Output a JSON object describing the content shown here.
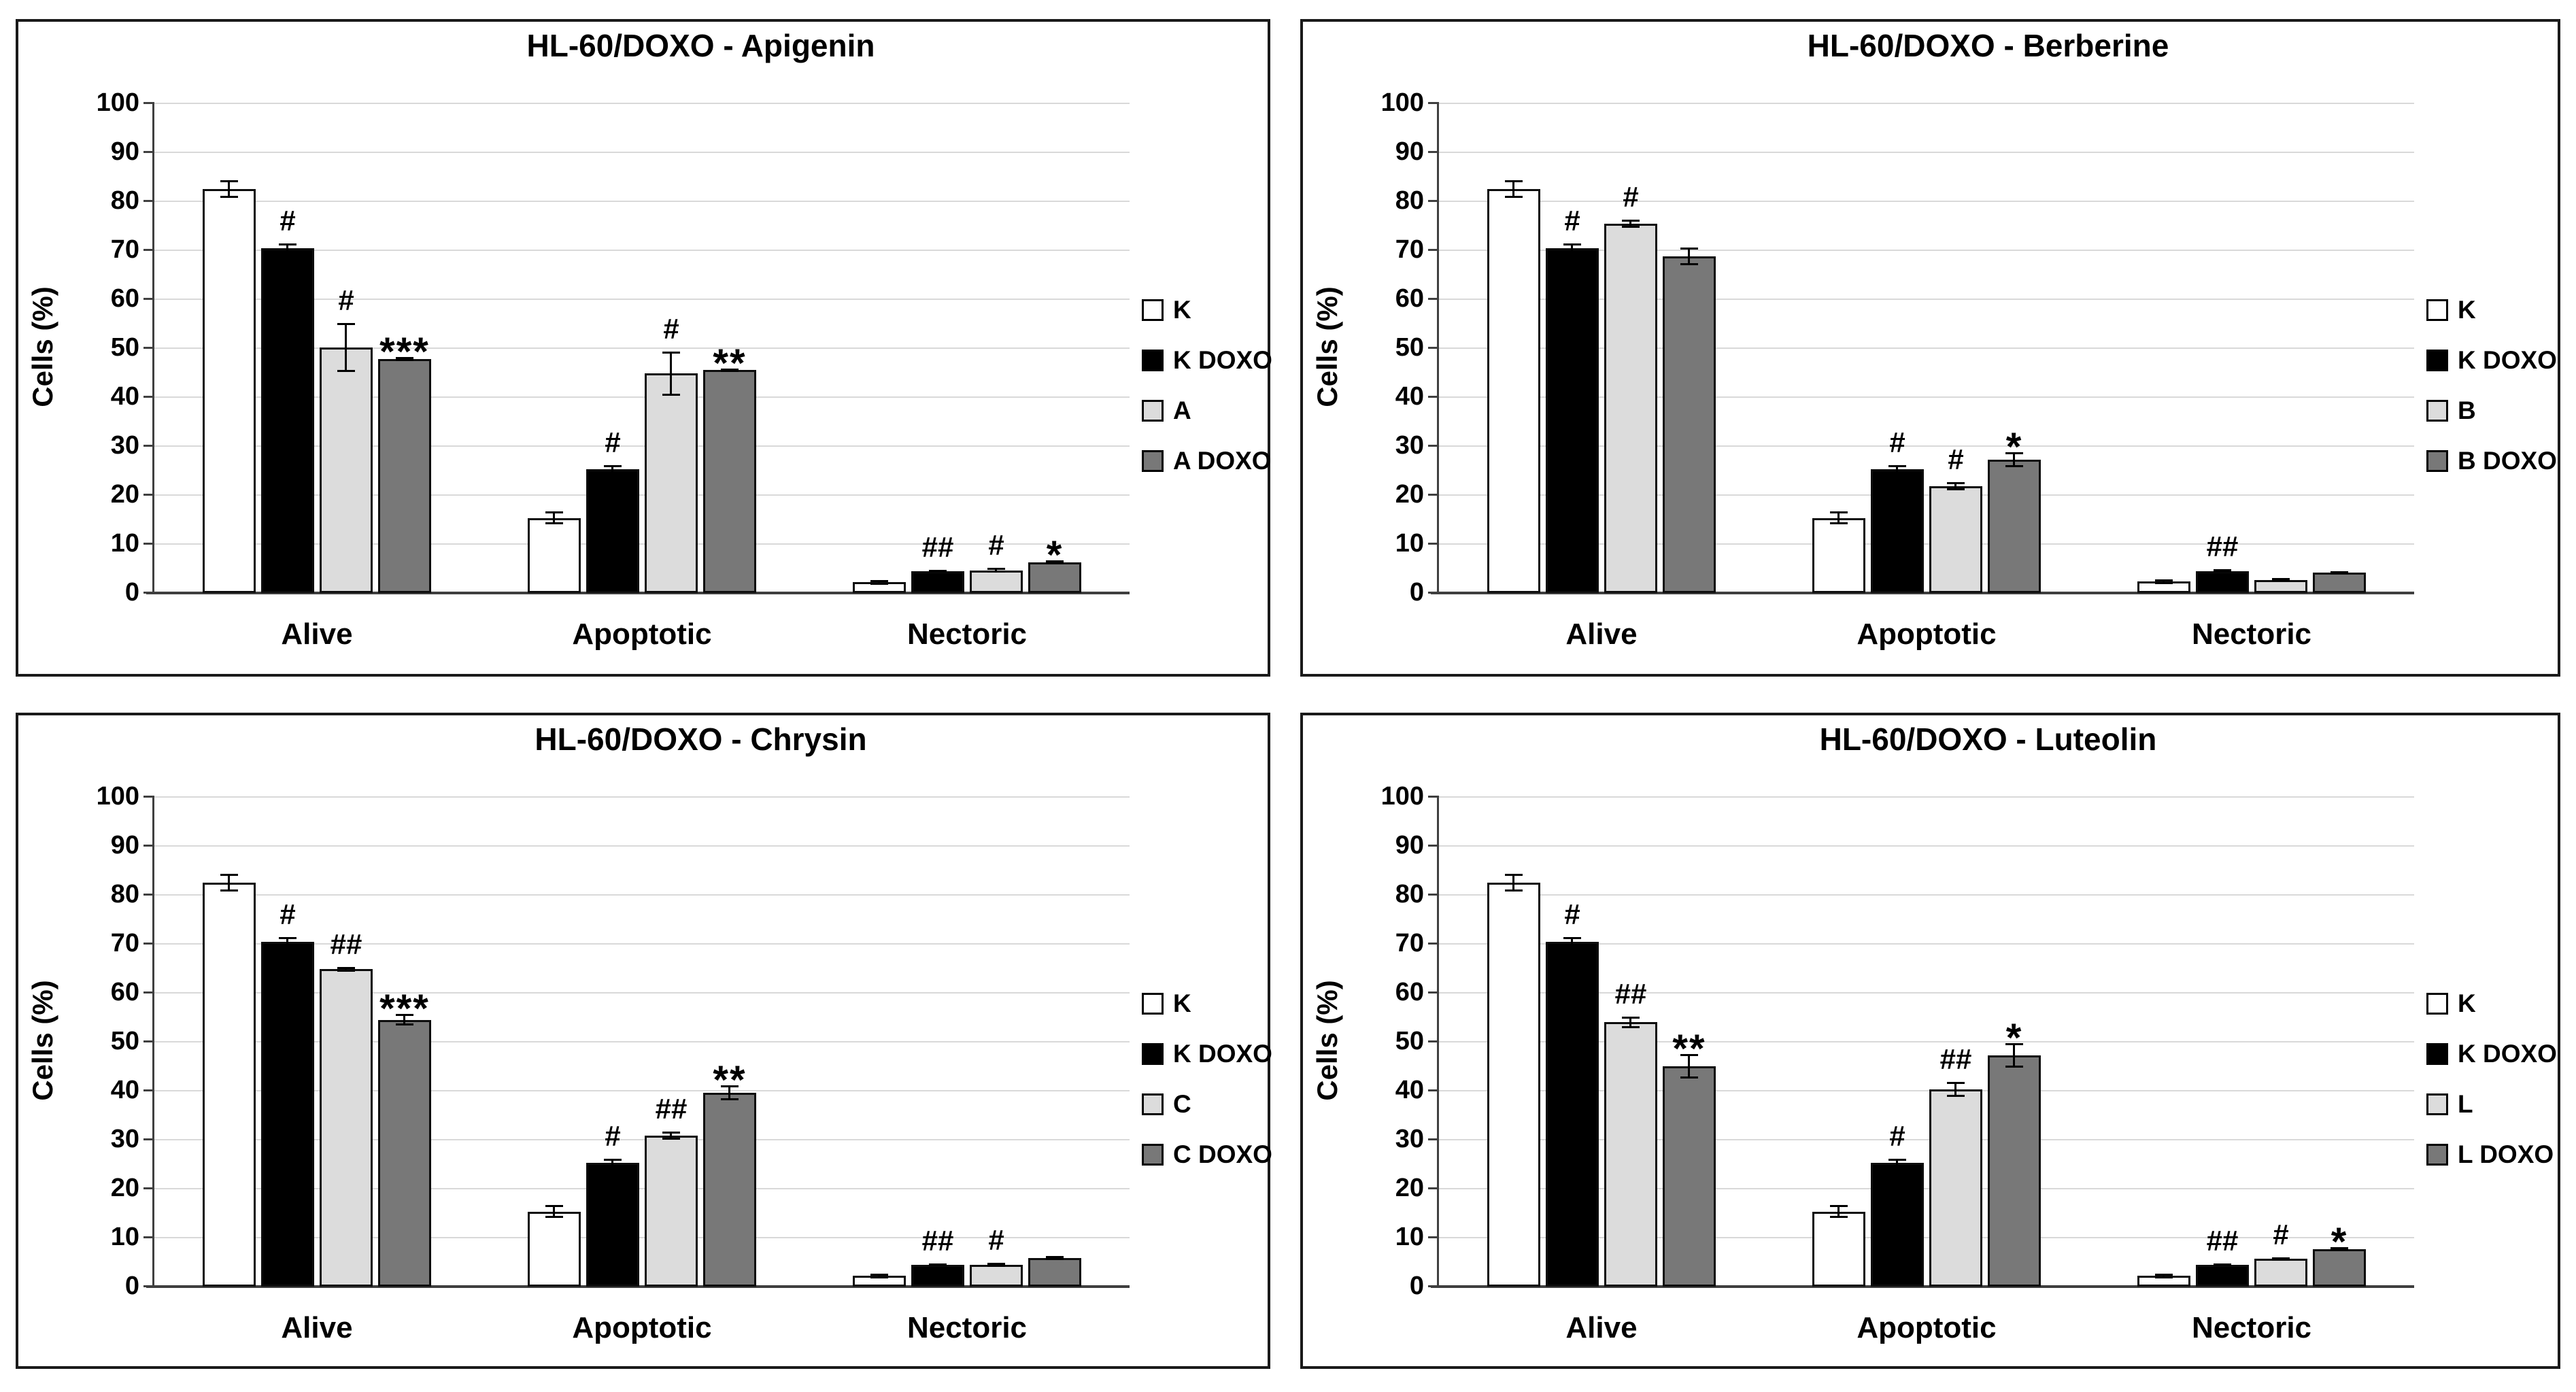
{
  "axis": {
    "ylabel": "Cells (%)",
    "yticks": [
      "0",
      "10",
      "20",
      "30",
      "40",
      "50",
      "60",
      "70",
      "80",
      "90",
      "100"
    ],
    "ymin": 0,
    "ymax": 100
  },
  "categories": [
    "Alive",
    "Apoptotic",
    "Nectoric"
  ],
  "colors": {
    "control_fill": "#ffffff",
    "control_doxo_fill": "#000000",
    "treatment_fill": "#dcdcdc",
    "treatment_doxo_fill": "#787878",
    "bar_border": "#0d0d0d",
    "gridline": "#d9d9d9",
    "axis_line": "#404040",
    "panel_border": "#1a1a1a"
  },
  "chart_data": [
    {
      "type": "bar",
      "title": "HL-60/DOXO - Apigenin",
      "ylabel": "Cells (%)",
      "ylim": [
        0,
        100
      ],
      "grid": true,
      "legend_position": "right",
      "categories": [
        "Alive",
        "Apoptotic",
        "Nectoric"
      ],
      "series": [
        {
          "name": "K",
          "fill": "#ffffff",
          "values": [
            82.5,
            15.3,
            2.2
          ],
          "errors": [
            1.8,
            1.3,
            0.5
          ],
          "annotations": [
            "",
            "",
            ""
          ]
        },
        {
          "name": "K DOXO",
          "fill": "#000000",
          "values": [
            70.4,
            25.3,
            4.4
          ],
          "errors": [
            1.0,
            0.8,
            0.3
          ],
          "annotations": [
            "#",
            "#",
            "##"
          ]
        },
        {
          "name": "A",
          "fill": "#dcdcdc",
          "values": [
            50.2,
            44.8,
            4.6
          ],
          "errors": [
            5.0,
            4.5,
            0.5
          ],
          "annotations": [
            "#",
            "#",
            "#"
          ]
        },
        {
          "name": "A DOXO",
          "fill": "#787878",
          "values": [
            47.8,
            45.5,
            6.3
          ],
          "errors": [
            0.4,
            0.4,
            0.3
          ],
          "annotations": [
            "***",
            "**",
            "*"
          ]
        }
      ]
    },
    {
      "type": "bar",
      "title": "HL-60/DOXO - Berberine",
      "ylabel": "Cells (%)",
      "ylim": [
        0,
        100
      ],
      "grid": true,
      "legend_position": "right",
      "categories": [
        "Alive",
        "Apoptotic",
        "Nectoric"
      ],
      "series": [
        {
          "name": "K",
          "fill": "#ffffff",
          "values": [
            82.5,
            15.3,
            2.3
          ],
          "errors": [
            1.8,
            1.3,
            0.5
          ],
          "annotations": [
            "",
            "",
            ""
          ]
        },
        {
          "name": "K DOXO",
          "fill": "#000000",
          "values": [
            70.4,
            25.3,
            4.5
          ],
          "errors": [
            1.0,
            0.8,
            0.3
          ],
          "annotations": [
            "#",
            "#",
            "##"
          ]
        },
        {
          "name": "B",
          "fill": "#dcdcdc",
          "values": [
            75.4,
            21.8,
            2.7
          ],
          "errors": [
            0.8,
            0.8,
            0.3
          ],
          "annotations": [
            "#",
            "#",
            ""
          ]
        },
        {
          "name": "B DOXO",
          "fill": "#787878",
          "values": [
            68.8,
            27.2,
            4.2
          ],
          "errors": [
            1.8,
            1.5,
            0.3
          ],
          "annotations": [
            "",
            "*",
            ""
          ]
        }
      ]
    },
    {
      "type": "bar",
      "title": "HL-60/DOXO - Chrysin",
      "ylabel": "Cells (%)",
      "ylim": [
        0,
        100
      ],
      "grid": true,
      "legend_position": "right",
      "categories": [
        "Alive",
        "Apoptotic",
        "Nectoric"
      ],
      "series": [
        {
          "name": "K",
          "fill": "#ffffff",
          "values": [
            82.5,
            15.3,
            2.2
          ],
          "errors": [
            1.8,
            1.3,
            0.5
          ],
          "annotations": [
            "",
            "",
            ""
          ]
        },
        {
          "name": "K DOXO",
          "fill": "#000000",
          "values": [
            70.4,
            25.3,
            4.4
          ],
          "errors": [
            1.0,
            0.8,
            0.3
          ],
          "annotations": [
            "#",
            "#",
            "##"
          ]
        },
        {
          "name": "C",
          "fill": "#dcdcdc",
          "values": [
            64.8,
            30.8,
            4.4
          ],
          "errors": [
            0.5,
            0.8,
            0.4
          ],
          "annotations": [
            "##",
            "##",
            "#"
          ]
        },
        {
          "name": "C DOXO",
          "fill": "#787878",
          "values": [
            54.5,
            39.6,
            5.8
          ],
          "errors": [
            1.2,
            1.5,
            0.4
          ],
          "annotations": [
            "***",
            "**",
            ""
          ]
        }
      ]
    },
    {
      "type": "bar",
      "title": "HL-60/DOXO - Luteolin",
      "ylabel": "Cells (%)",
      "ylim": [
        0,
        100
      ],
      "grid": true,
      "legend_position": "right",
      "categories": [
        "Alive",
        "Apoptotic",
        "Nectoric"
      ],
      "series": [
        {
          "name": "K",
          "fill": "#ffffff",
          "values": [
            82.5,
            15.3,
            2.2
          ],
          "errors": [
            1.8,
            1.3,
            0.5
          ],
          "annotations": [
            "",
            "",
            ""
          ]
        },
        {
          "name": "K DOXO",
          "fill": "#000000",
          "values": [
            70.4,
            25.3,
            4.4
          ],
          "errors": [
            1.0,
            0.8,
            0.3
          ],
          "annotations": [
            "#",
            "#",
            "##"
          ]
        },
        {
          "name": "L",
          "fill": "#dcdcdc",
          "values": [
            54.0,
            40.3,
            5.7
          ],
          "errors": [
            1.2,
            1.5,
            0.3
          ],
          "annotations": [
            "##",
            "##",
            "#"
          ]
        },
        {
          "name": "L DOXO",
          "fill": "#787878",
          "values": [
            45.0,
            47.2,
            7.7
          ],
          "errors": [
            2.5,
            2.5,
            0.4
          ],
          "annotations": [
            "**",
            "*",
            "*"
          ]
        }
      ]
    }
  ]
}
